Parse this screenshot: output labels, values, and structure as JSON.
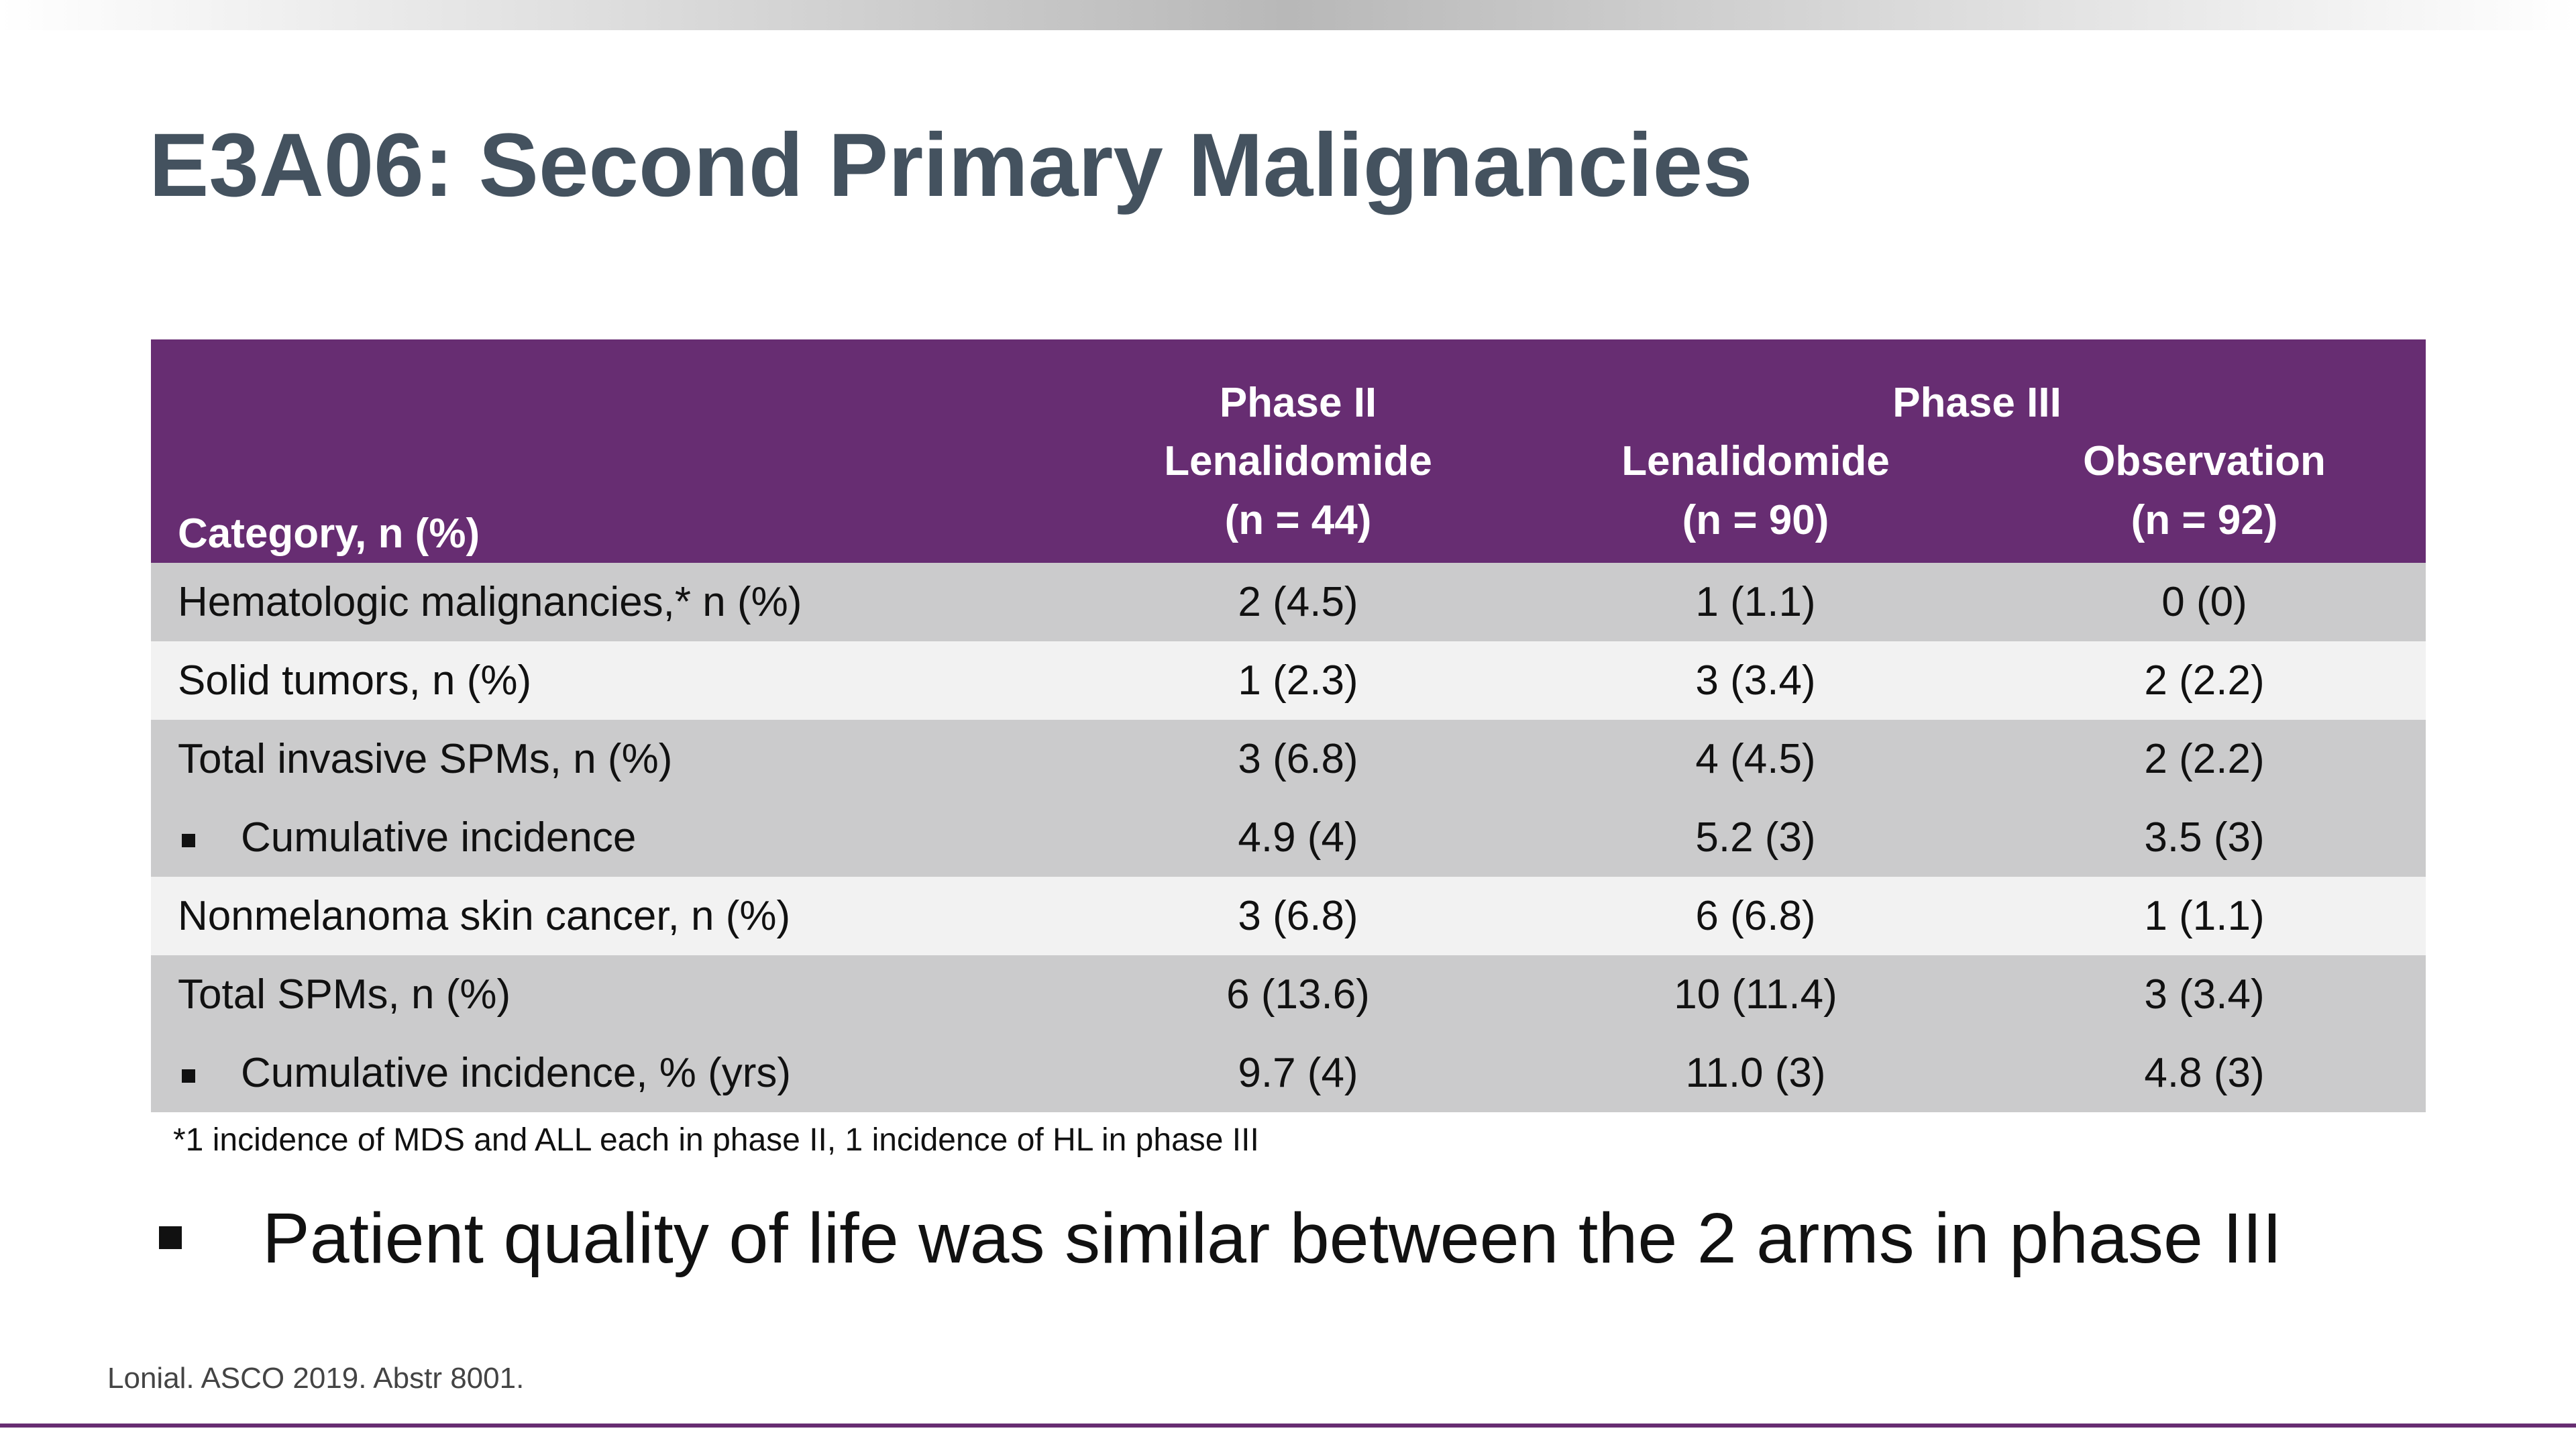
{
  "header": {
    "title": "E3A06: Second Primary Malignancies"
  },
  "table": {
    "head": {
      "category": "Category, n (%)",
      "groups": [
        "Phase II",
        "Phase III"
      ],
      "columns": [
        [
          "Lenalidomide",
          "(n = 44)"
        ],
        [
          "Lenalidomide",
          "(n = 90)"
        ],
        [
          "Observation",
          "(n = 92)"
        ]
      ]
    },
    "rows": [
      [
        "Hematologic malignancies,* n (%)",
        "2 (4.5)",
        "1 (1.1)",
        "0 (0)"
      ],
      [
        "Solid tumors, n (%)",
        "1 (2.3)",
        "3 (3.4)",
        "2 (2.2)"
      ],
      [
        "Total invasive SPMs, n (%)",
        "3 (6.8)",
        "4 (4.5)",
        "2 (2.2)"
      ],
      [
        "Cumulative incidence",
        "4.9 (4)",
        "5.2 (3)",
        "3.5 (3)"
      ],
      [
        "Nonmelanoma skin cancer, n (%)",
        "3 (6.8)",
        "6 (6.8)",
        "1 (1.1)"
      ],
      [
        "Total SPMs, n (%)",
        "6 (13.6)",
        "10 (11.4)",
        "3 (3.4)"
      ],
      [
        "Cumulative incidence, % (yrs)",
        "9.7 (4)",
        "11.0 (3)",
        "4.8 (3)"
      ]
    ],
    "footnote": "*1 incidence of MDS and ALL each in phase II, 1 incidence of HL in phase III"
  },
  "bullet": "Patient quality of life was similar between the 2 arms in phase III",
  "source": "Lonial. ASCO 2019. Abstr 8001."
}
